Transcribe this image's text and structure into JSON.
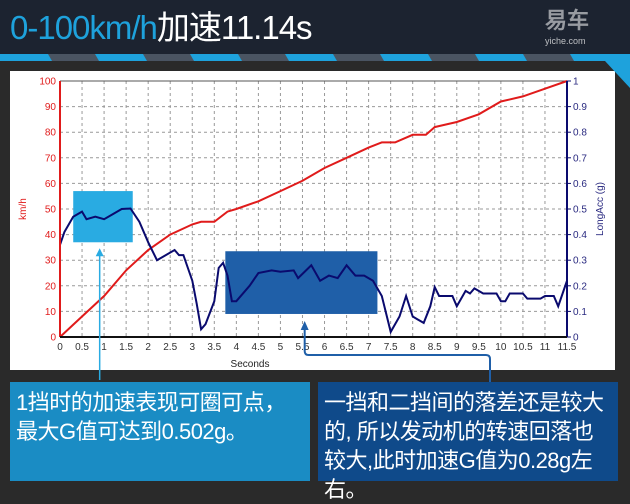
{
  "header": {
    "title_highlight": "0-100km/h",
    "title_rest": "加速11.14s"
  },
  "colors": {
    "speed": "#e01b1b",
    "accel": "#0a0a6e",
    "box_1st_gear": "#29abe2",
    "box_2nd_gear": "#1f5fa8",
    "note_left_bg": "#1a8cc4",
    "note_right_bg": "#0f4a8a"
  },
  "chart_data": {
    "type": "line",
    "xlabel": "Seconds",
    "ylabel_left": "km/h",
    "ylabel_right": "LongAcc (g)",
    "xlim": [
      0,
      11.5
    ],
    "ylim_left": [
      0,
      100
    ],
    "ylim_right": [
      0,
      1
    ],
    "grid": true,
    "x_ticks": [
      "0",
      "0.5",
      "1",
      "1.5",
      "2",
      "2.5",
      "3",
      "3.5",
      "4",
      "4.5",
      "5",
      "5.5",
      "6",
      "6.5",
      "7",
      "7.5",
      "8",
      "8.5",
      "9",
      "9.5",
      "10",
      "10.5",
      "11",
      "11.5"
    ],
    "y_left_ticks": [
      "0",
      "10",
      "20",
      "30",
      "40",
      "50",
      "60",
      "70",
      "80",
      "90",
      "100"
    ],
    "y_right_ticks": [
      "0",
      "0.1",
      "0.2",
      "0.3",
      "0.4",
      "0.5",
      "0.6",
      "0.7",
      "0.8",
      "0.9",
      "1"
    ],
    "series": [
      {
        "axis": "left",
        "x": [
          0,
          0.5,
          1,
          1.5,
          2,
          2.5,
          3,
          3.2,
          3.5,
          3.8,
          4,
          4.5,
          5,
          5.5,
          6,
          6.5,
          7,
          7.3,
          7.6,
          8,
          8.3,
          8.5,
          9,
          9.5,
          10,
          10.5,
          11,
          11.5
        ],
        "values": [
          0,
          8,
          16,
          26,
          34,
          40,
          44,
          45,
          45,
          49,
          50,
          53,
          57,
          61,
          66,
          70,
          74,
          76,
          76,
          79,
          79,
          82,
          84,
          87,
          92,
          94,
          97,
          100
        ]
      },
      {
        "axis": "right",
        "x": [
          0,
          0.1,
          0.3,
          0.5,
          0.6,
          0.8,
          1,
          1.2,
          1.4,
          1.6,
          1.8,
          2,
          2.2,
          2.4,
          2.6,
          2.7,
          2.8,
          3,
          3.1,
          3.2,
          3.3,
          3.5,
          3.6,
          3.7,
          3.8,
          3.9,
          4.0,
          4.3,
          4.5,
          4.8,
          5,
          5.3,
          5.4,
          5.7,
          5.9,
          6.1,
          6.3,
          6.5,
          6.7,
          6.9,
          7.1,
          7.3,
          7.5,
          7.7,
          7.85,
          8.0,
          8.1,
          8.25,
          8.4,
          8.5,
          8.6,
          8.9,
          9.0,
          9.2,
          9.3,
          9.4,
          9.6,
          9.9,
          10.0,
          10.1,
          10.2,
          10.5,
          10.6,
          10.9,
          11.0,
          11.2,
          11.3,
          11.4,
          11.5
        ],
        "values": [
          0.36,
          0.41,
          0.47,
          0.49,
          0.46,
          0.47,
          0.46,
          0.48,
          0.5,
          0.502,
          0.45,
          0.37,
          0.3,
          0.32,
          0.34,
          0.32,
          0.32,
          0.22,
          0.13,
          0.03,
          0.05,
          0.14,
          0.27,
          0.29,
          0.24,
          0.14,
          0.14,
          0.2,
          0.25,
          0.26,
          0.255,
          0.26,
          0.23,
          0.28,
          0.22,
          0.24,
          0.23,
          0.28,
          0.24,
          0.24,
          0.22,
          0.16,
          0.02,
          0.08,
          0.16,
          0.08,
          0.07,
          0.055,
          0.12,
          0.195,
          0.16,
          0.16,
          0.12,
          0.18,
          0.17,
          0.19,
          0.17,
          0.17,
          0.14,
          0.14,
          0.17,
          0.17,
          0.15,
          0.15,
          0.16,
          0.16,
          0.12,
          0.17,
          0.22
        ]
      }
    ],
    "highlight_boxes": [
      {
        "x": [
          0.3,
          1.65
        ],
        "g": [
          0.37,
          0.57
        ]
      },
      {
        "x": [
          3.75,
          7.2
        ],
        "g": [
          0.09,
          0.335
        ]
      }
    ]
  },
  "notes": {
    "left": "1挡时的加速表现可圈可点，最大G值可达到0.502g。",
    "right": "一挡和二挡间的落差还是较大的, 所以发动机的转速回落也较大,此时加速G值为0.28g左右。"
  },
  "watermark": {
    "logo": "易车",
    "site": "yiche.com"
  }
}
